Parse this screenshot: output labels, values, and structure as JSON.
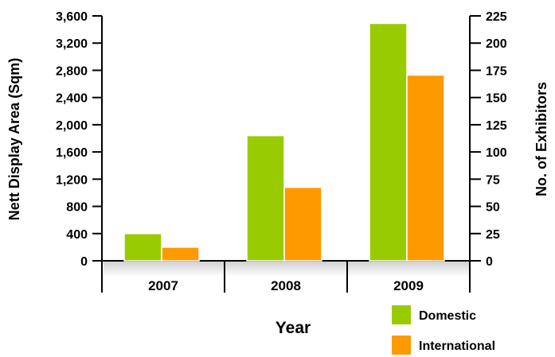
{
  "chart_data": {
    "type": "bar",
    "categories": [
      "2007",
      "2008",
      "2009"
    ],
    "series": [
      {
        "name": "Domestic",
        "color": "#99cc00",
        "values": [
          400,
          1840,
          3490
        ]
      },
      {
        "name": "International",
        "color": "#ff9900",
        "values": [
          200,
          1080,
          2730
        ]
      }
    ],
    "xlabel": "Year",
    "ylabel": "Nett Display Area (Sqm)",
    "ylabel_right": "No. of Exhibitors",
    "ylim": [
      0,
      3600
    ],
    "ylim_right": [
      0,
      225
    ],
    "yticks": [
      "0",
      "400",
      "800",
      "1,200",
      "1,600",
      "2,000",
      "2,400",
      "2,800",
      "3,200",
      "3,600"
    ],
    "yticks_right": [
      "0",
      "25",
      "50",
      "75",
      "100",
      "125",
      "150",
      "175",
      "200",
      "225"
    ],
    "legend": [
      "Domestic",
      "International"
    ],
    "legend_position": "bottom-right"
  }
}
